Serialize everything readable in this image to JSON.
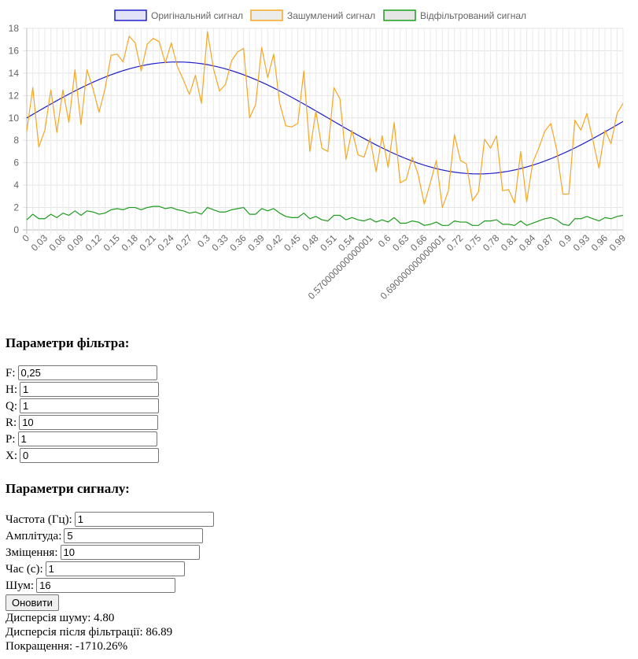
{
  "chart_data": {
    "type": "line",
    "legend_position": "top",
    "grid": true,
    "ylim": [
      0,
      18
    ],
    "yticks": [
      0,
      2,
      4,
      6,
      8,
      10,
      12,
      14,
      16,
      18
    ],
    "x_labels": [
      "0",
      "0.03",
      "0.06",
      "0.09",
      "0.12",
      "0.15",
      "0.18",
      "0.21",
      "0.24",
      "0.27",
      "0.3",
      "0.33",
      "0.36",
      "0.39",
      "0.42",
      "0.45",
      "0.48",
      "0.51",
      "0.54",
      "0.570000000000001",
      "0.6",
      "0.63",
      "0.66",
      "0.690000000000001",
      "0.72",
      "0.75",
      "0.78",
      "0.81",
      "0.84",
      "0.87",
      "0.9",
      "0.93",
      "0.96",
      "0.99"
    ],
    "x_step": 0.01,
    "x_count": 100,
    "series": [
      {
        "name": "Оригінальний сигнал",
        "color": "#2020cc",
        "legend_fill": "#e3e3f7",
        "formula": "10 + 5*sin(2*pi*x)"
      },
      {
        "name": "Зашумлений сигнал",
        "color": "#f5a623",
        "legend_fill": "#ececec",
        "values": [
          8.8,
          12.7,
          7.4,
          8.9,
          12.5,
          8.7,
          12.5,
          9.6,
          14.3,
          9.4,
          14.3,
          12.6,
          10.5,
          12.6,
          15.6,
          15.7,
          15.0,
          17.3,
          16.7,
          14.2,
          16.6,
          17.1,
          16.8,
          14.9,
          16.7,
          14.6,
          13.4,
          12.1,
          13.8,
          11.3,
          17.7,
          14.4,
          12.4,
          13.0,
          15.1,
          15.9,
          16.2,
          10.0,
          11.2,
          16.3,
          13.6,
          15.7,
          11.3,
          9.3,
          9.2,
          9.5,
          14.2,
          7.0,
          10.6,
          7.3,
          7.0,
          12.7,
          11.7,
          6.3,
          8.9,
          6.7,
          6.5,
          8.2,
          5.2,
          8.4,
          5.6,
          9.6,
          4.2,
          4.5,
          6.5,
          4.9,
          2.3,
          4.2,
          6.2,
          2.0,
          3.5,
          8.5,
          6.2,
          5.9,
          2.6,
          3.4,
          8.1,
          7.3,
          8.4,
          3.5,
          3.6,
          2.4,
          7.0,
          2.5,
          6.0,
          7.3,
          8.8,
          9.5,
          7.1,
          3.2,
          3.2,
          9.8,
          8.9,
          10.4,
          8.0,
          5.5,
          8.9,
          7.7,
          10.4,
          11.3
        ]
      },
      {
        "name": "Відфільтрований сигнал",
        "color": "#1e9b1e",
        "legend_fill": "#e6e6e6",
        "values": [
          0.9,
          1.4,
          1.0,
          1.0,
          1.4,
          1.1,
          1.5,
          1.3,
          1.7,
          1.3,
          1.7,
          1.6,
          1.4,
          1.5,
          1.8,
          1.9,
          1.8,
          2.0,
          2.0,
          1.8,
          2.0,
          2.1,
          2.1,
          1.9,
          2.0,
          1.8,
          1.7,
          1.5,
          1.6,
          1.4,
          2.0,
          1.8,
          1.6,
          1.6,
          1.8,
          1.9,
          2.0,
          1.4,
          1.4,
          1.9,
          1.7,
          1.9,
          1.5,
          1.2,
          1.1,
          1.1,
          1.5,
          1.0,
          1.2,
          0.9,
          0.8,
          1.3,
          1.3,
          0.9,
          1.1,
          0.9,
          0.8,
          1.0,
          0.7,
          0.9,
          0.7,
          1.1,
          0.6,
          0.6,
          0.8,
          0.7,
          0.4,
          0.5,
          0.7,
          0.4,
          0.4,
          0.8,
          0.7,
          0.7,
          0.4,
          0.4,
          0.8,
          0.8,
          0.9,
          0.5,
          0.5,
          0.4,
          0.8,
          0.4,
          0.6,
          0.8,
          1.0,
          1.1,
          0.9,
          0.5,
          0.4,
          1.0,
          1.0,
          1.2,
          1.0,
          0.8,
          1.1,
          1.0,
          1.2,
          1.3
        ]
      }
    ]
  },
  "filter": {
    "title": "Параметри фільтра:",
    "fields": [
      {
        "label": "F:",
        "value": "0,25"
      },
      {
        "label": "H:",
        "value": "1"
      },
      {
        "label": "Q:",
        "value": "1"
      },
      {
        "label": "R:",
        "value": "10"
      },
      {
        "label": "P:",
        "value": "1"
      },
      {
        "label": "X:",
        "value": "0"
      }
    ]
  },
  "signal": {
    "title": "Параметри сигналу:",
    "fields": [
      {
        "label": "Частота (Гц):",
        "value": "1"
      },
      {
        "label": "Амплітуда:",
        "value": "5"
      },
      {
        "label": "Зміщення:",
        "value": "10"
      },
      {
        "label": "Час (с):",
        "value": "1"
      },
      {
        "label": "Шум:",
        "value": "16"
      }
    ]
  },
  "update_button": "Оновити",
  "stats": {
    "noise_variance": "Дисперсія шуму: 4.80",
    "filtered_variance": "Дисперсія після фільтрації: 86.89",
    "improvement": "Покращення: -1710.26%"
  }
}
